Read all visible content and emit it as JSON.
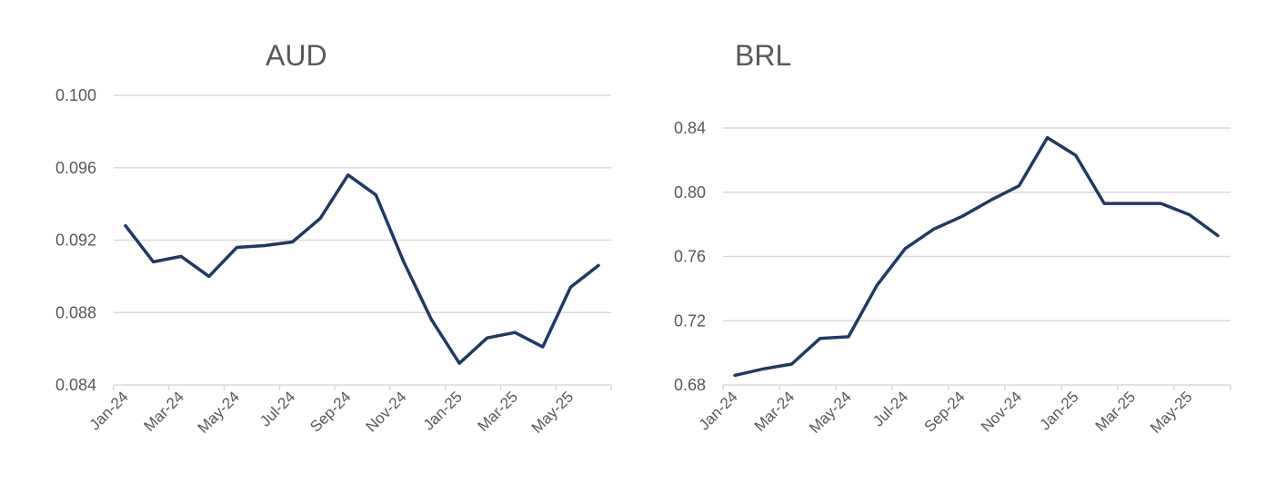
{
  "chart_data": [
    {
      "type": "line",
      "title": "AUD",
      "xlabel": "",
      "ylabel": "",
      "x": [
        "Jan-24",
        "Feb-24",
        "Mar-24",
        "Apr-24",
        "May-24",
        "Jun-24",
        "Jul-24",
        "Aug-24",
        "Sep-24",
        "Oct-24",
        "Nov-24",
        "Dec-24",
        "Jan-25",
        "Feb-25",
        "Mar-25",
        "Apr-25",
        "May-25",
        "Jun-25"
      ],
      "x_tick_labels": [
        "Jan-24",
        "Mar-24",
        "May-24",
        "Jul-24",
        "Sep-24",
        "Nov-24",
        "Jan-25",
        "Mar-25",
        "May-25"
      ],
      "y_tick_labels": [
        "0.084",
        "0.088",
        "0.092",
        "0.096",
        "0.100"
      ],
      "ylim": [
        0.084,
        0.1
      ],
      "grid": true,
      "series": [
        {
          "color": "#203864",
          "values": [
            0.0928,
            0.0908,
            0.0911,
            0.09,
            0.0916,
            0.0917,
            0.0919,
            0.0932,
            0.0956,
            0.0945,
            0.0908,
            0.0876,
            0.0852,
            0.0866,
            0.0869,
            0.0861,
            0.0894,
            0.0906
          ]
        }
      ]
    },
    {
      "type": "line",
      "title": "BRL",
      "xlabel": "",
      "ylabel": "",
      "x": [
        "Jan-24",
        "Feb-24",
        "Mar-24",
        "Apr-24",
        "May-24",
        "Jun-24",
        "Jul-24",
        "Aug-24",
        "Sep-24",
        "Oct-24",
        "Nov-24",
        "Dec-24",
        "Jan-25",
        "Feb-25",
        "Mar-25",
        "Apr-25",
        "May-25",
        "Jun-25"
      ],
      "x_tick_labels": [
        "Jan-24",
        "Mar-24",
        "May-24",
        "Jul-24",
        "Sep-24",
        "Nov-24",
        "Jan-25",
        "Mar-25",
        "May-25"
      ],
      "y_tick_labels": [
        "0.68",
        "0.72",
        "0.76",
        "0.80",
        "0.84"
      ],
      "ylim": [
        0.68,
        0.84
      ],
      "grid": true,
      "series": [
        {
          "color": "#203864",
          "values": [
            0.686,
            0.69,
            0.693,
            0.709,
            0.71,
            0.742,
            0.765,
            0.777,
            0.785,
            0.795,
            0.804,
            0.834,
            0.823,
            0.793,
            0.793,
            0.793,
            0.786,
            0.773
          ]
        }
      ]
    }
  ]
}
